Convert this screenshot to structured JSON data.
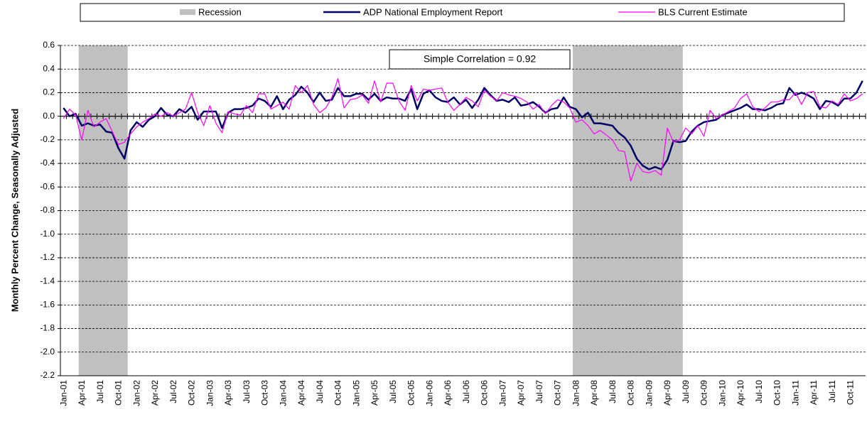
{
  "chart_data": {
    "type": "line",
    "y_label": "Monthly Percent Change, Seasonally Adjusted",
    "annotation": "Simple Correlation = 0.92",
    "categories": [
      "Jan-01",
      null,
      null,
      "Apr-01",
      null,
      null,
      "Jul-01",
      null,
      null,
      "Oct-01",
      null,
      null,
      "Jan-02",
      null,
      null,
      "Apr-02",
      null,
      null,
      "Jul-02",
      null,
      null,
      "Oct-02",
      null,
      null,
      "Jan-03",
      null,
      null,
      "Apr-03",
      null,
      null,
      "Jul-03",
      null,
      null,
      "Oct-03",
      null,
      null,
      "Jan-04",
      null,
      null,
      "Apr-04",
      null,
      null,
      "Jul-04",
      null,
      null,
      "Oct-04",
      null,
      null,
      "Jan-05",
      null,
      null,
      "Apr-05",
      null,
      null,
      "Jul-05",
      null,
      null,
      "Oct-05",
      null,
      null,
      "Jan-06",
      null,
      null,
      "Apr-06",
      null,
      null,
      "Jul-06",
      null,
      null,
      "Oct-06",
      null,
      null,
      "Jan-07",
      null,
      null,
      "Apr-07",
      null,
      null,
      "Jul-07",
      null,
      null,
      "Oct-07",
      null,
      null,
      "Jan-08",
      null,
      null,
      "Apr-08",
      null,
      null,
      "Jul-08",
      null,
      null,
      "Oct-08",
      null,
      null,
      "Jan-09",
      null,
      null,
      "Apr-09",
      null,
      null,
      "Jul-09",
      null,
      null,
      "Oct-09",
      null,
      null,
      "Jan-10",
      null,
      null,
      "Apr-10",
      null,
      null,
      "Jul-10",
      null,
      null,
      "Oct-10",
      null,
      null,
      "Jan-11",
      null,
      null,
      "Apr-11",
      null,
      null,
      "Jul-11",
      null,
      null,
      "Oct-11",
      null,
      null
    ],
    "series": [
      {
        "name": "Recession",
        "type": "bar",
        "color": "#c0c0c0",
        "values": [
          null,
          null,
          null,
          0.6,
          0.6,
          0.6,
          0.6,
          0.6,
          0.6,
          0.6,
          0.6,
          null,
          null,
          null,
          null,
          null,
          null,
          null,
          null,
          null,
          null,
          null,
          null,
          null,
          null,
          null,
          null,
          null,
          null,
          null,
          null,
          null,
          null,
          null,
          null,
          null,
          null,
          null,
          null,
          null,
          null,
          null,
          null,
          null,
          null,
          null,
          null,
          null,
          null,
          null,
          null,
          null,
          null,
          null,
          null,
          null,
          null,
          null,
          null,
          null,
          null,
          null,
          null,
          null,
          null,
          null,
          null,
          null,
          null,
          null,
          null,
          null,
          null,
          null,
          null,
          null,
          null,
          null,
          null,
          null,
          null,
          null,
          null,
          null,
          0.6,
          0.6,
          0.6,
          0.6,
          0.6,
          0.6,
          0.6,
          0.6,
          0.6,
          0.6,
          0.6,
          0.6,
          0.6,
          0.6,
          0.6,
          0.6,
          0.6,
          0.6,
          null,
          null,
          null,
          null,
          null,
          null,
          null,
          null,
          null,
          null,
          null,
          null,
          null,
          null,
          null,
          null,
          null,
          null,
          null,
          null,
          null,
          null,
          null,
          null,
          null,
          null,
          null,
          null,
          null,
          null
        ]
      },
      {
        "name": "ADP National Employment Report",
        "type": "line",
        "color": "#000066",
        "width": 2.5,
        "values": [
          0.07,
          0.0,
          0.02,
          -0.08,
          -0.06,
          -0.08,
          -0.07,
          -0.13,
          -0.14,
          -0.27,
          -0.36,
          -0.12,
          -0.05,
          -0.09,
          -0.03,
          0.0,
          0.07,
          0.01,
          0.0,
          0.06,
          0.03,
          0.08,
          -0.03,
          0.04,
          0.04,
          0.04,
          -0.1,
          0.03,
          0.06,
          0.06,
          0.07,
          0.09,
          0.15,
          0.13,
          0.08,
          0.17,
          0.06,
          0.14,
          0.18,
          0.25,
          0.2,
          0.12,
          0.2,
          0.13,
          0.14,
          0.24,
          0.17,
          0.17,
          0.19,
          0.19,
          0.14,
          0.19,
          0.13,
          0.16,
          0.15,
          0.15,
          0.13,
          0.23,
          0.06,
          0.19,
          0.22,
          0.16,
          0.13,
          0.12,
          0.16,
          0.1,
          0.14,
          0.07,
          0.14,
          0.24,
          0.18,
          0.13,
          0.14,
          0.12,
          0.16,
          0.09,
          0.1,
          0.12,
          0.08,
          0.03,
          0.06,
          0.07,
          0.16,
          0.08,
          0.06,
          -0.01,
          0.03,
          -0.06,
          -0.06,
          -0.07,
          -0.08,
          -0.14,
          -0.18,
          -0.25,
          -0.36,
          -0.42,
          -0.45,
          -0.43,
          -0.45,
          -0.37,
          -0.21,
          -0.22,
          -0.21,
          -0.13,
          -0.08,
          -0.05,
          -0.04,
          -0.03,
          0.01,
          0.03,
          0.05,
          0.07,
          0.1,
          0.06,
          0.06,
          0.05,
          0.07,
          0.1,
          0.11,
          0.24,
          0.18,
          0.2,
          0.18,
          0.15,
          0.06,
          0.13,
          0.12,
          0.09,
          0.15,
          0.15,
          0.2,
          0.3
        ]
      },
      {
        "name": "BLS Current Estimate",
        "type": "line",
        "color": "#ff00ff",
        "width": 1.2,
        "values": [
          -0.02,
          0.06,
          0.01,
          -0.2,
          0.05,
          -0.09,
          -0.05,
          -0.02,
          -0.13,
          -0.24,
          -0.22,
          -0.15,
          -0.09,
          -0.05,
          -0.02,
          0.02,
          0.0,
          0.03,
          0.0,
          0.03,
          0.06,
          0.2,
          0.03,
          -0.08,
          0.09,
          -0.06,
          -0.14,
          0.04,
          0.02,
          0.01,
          0.09,
          0.03,
          0.19,
          0.19,
          0.06,
          0.09,
          0.12,
          0.06,
          0.26,
          0.2,
          0.26,
          0.1,
          0.03,
          0.07,
          0.16,
          0.32,
          0.07,
          0.14,
          0.15,
          0.18,
          0.11,
          0.3,
          0.12,
          0.28,
          0.28,
          0.13,
          0.05,
          0.26,
          0.13,
          0.23,
          0.22,
          0.23,
          0.24,
          0.12,
          0.05,
          0.1,
          0.16,
          0.13,
          0.08,
          0.22,
          0.17,
          0.13,
          0.2,
          0.18,
          0.17,
          0.15,
          0.12,
          0.06,
          0.1,
          0.02,
          0.09,
          0.14,
          0.12,
          0.07,
          -0.05,
          -0.03,
          -0.08,
          -0.15,
          -0.12,
          -0.16,
          -0.2,
          -0.29,
          -0.3,
          -0.55,
          -0.4,
          -0.47,
          -0.48,
          -0.46,
          -0.5,
          -0.1,
          -0.22,
          -0.2,
          -0.1,
          -0.15,
          -0.08,
          -0.17,
          0.05,
          -0.02,
          0.01,
          0.04,
          0.07,
          0.15,
          0.19,
          0.08,
          0.04,
          0.07,
          0.12,
          0.12,
          0.14,
          0.14,
          0.2,
          0.1,
          0.2,
          0.21,
          0.08,
          0.07,
          0.13,
          0.1,
          0.19,
          0.13,
          0.15,
          0.19
        ]
      }
    ],
    "ylim": [
      -2.2,
      0.6
    ],
    "yticks": [
      {
        "value": -2.2,
        "label": "-2.2"
      },
      {
        "value": -2.0,
        "label": "-2.0"
      },
      -1.8,
      -1.6,
      -1.4,
      -1.2,
      {
        "value": -1.0,
        "label": "-1.0"
      },
      -0.8,
      -0.6,
      -0.4,
      -0.2,
      {
        "value": 0,
        "label": "0.0"
      },
      0.2,
      0.4,
      0.6
    ],
    "grid": true
  }
}
